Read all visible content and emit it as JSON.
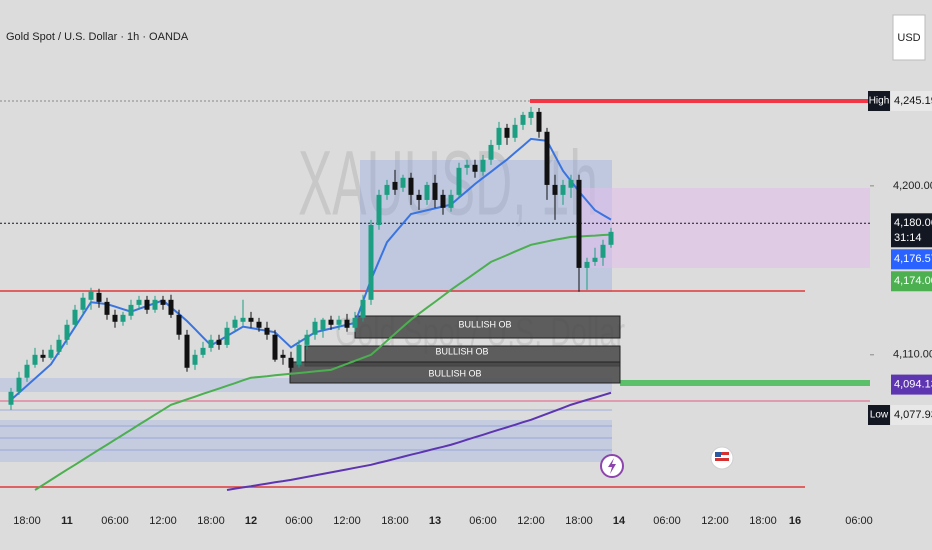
{
  "chart_data": {
    "type": "candlestick",
    "title": "Gold Spot / U.S. Dollar · 1h · OANDA",
    "watermark": "XAUUSD, 1h",
    "watermark_subtitle": "Gold Spot / U.S. Dollar",
    "currency": "USD",
    "categories": [
      null,
      null,
      "18:00",
      null,
      null,
      null,
      null,
      "11",
      null,
      null,
      null,
      null,
      null,
      "06:00",
      null,
      null,
      null,
      null,
      null,
      "12:00",
      null,
      null,
      null,
      null,
      null,
      "18:00",
      null,
      null,
      null,
      null,
      "12",
      null,
      null,
      null,
      null,
      null,
      "06:00",
      null,
      null,
      null,
      null,
      null,
      "12:00",
      null,
      null,
      null,
      null,
      null,
      "18:00",
      null,
      null,
      null,
      null,
      "13",
      null,
      null,
      null,
      null,
      null,
      "06:00",
      null,
      null,
      null,
      null,
      null,
      "12:00",
      null,
      null,
      null,
      null,
      null,
      "18:00",
      null,
      null,
      null,
      null,
      "14",
      null,
      null,
      null,
      null,
      null,
      "06:00",
      null,
      null,
      null,
      null,
      null,
      "12:00",
      null,
      null,
      null,
      null,
      null,
      "18:00",
      null,
      null,
      null,
      "16",
      null,
      null,
      null,
      null,
      null,
      null,
      null,
      "06:00"
    ],
    "open": [
      4083.4,
      4090.3,
      4097.8,
      4104.7,
      4110.0,
      4108.4,
      4111.6,
      4118.0,
      4126.0,
      4134.0,
      4139.3,
      4143.0,
      4138.2,
      4131.3,
      4127.6,
      4130.8,
      4136.6,
      4139.3,
      4134.0,
      4139.3,
      4139.3,
      4131.3,
      4120.7,
      4104.7,
      4110.0,
      4113.7,
      4118.0,
      4115.3,
      4124.4,
      4127.6,
      4129.7,
      4127.6,
      4124.4,
      4120.7,
      4110.0,
      4108.4,
      4104.7,
      4115.3,
      4120.7,
      4123.3,
      4128.7,
      4126.0,
      4128.7,
      4124.4,
      4129.7,
      4139.3,
      4179.2,
      4195.2,
      4202.1,
      4199.0,
      4204.3,
      4195.2,
      4192.5,
      4201.6,
      4195.2,
      4188.3,
      4195.2,
      4209.6,
      4211.2,
      4207.5,
      4213.9,
      4221.8,
      4230.9,
      4225.6,
      4232.5,
      4236.2,
      4239.4,
      4228.8,
      4200.5,
      4195.2,
      4199.0,
      4203.2,
      4156.3,
      4159.5,
      4161.7,
      4168.6,
      null,
      null,
      null,
      null,
      null,
      null,
      null,
      null,
      null,
      null,
      null,
      null,
      null,
      null,
      null,
      null,
      null,
      null,
      null,
      null,
      null,
      null,
      null,
      null,
      null,
      null,
      null,
      null,
      null,
      null,
      null
    ],
    "high": [
      4092.4,
      4101.0,
      4107.4,
      4113.7,
      4112.7,
      4115.3,
      4120.7,
      4128.7,
      4136.6,
      4143.0,
      4145.7,
      4145.2,
      4140.4,
      4134.0,
      4132.9,
      4139.3,
      4141.4,
      4141.4,
      4141.4,
      4141.4,
      4142.0,
      4134.0,
      4123.3,
      4112.7,
      4116.9,
      4120.7,
      4120.7,
      4127.6,
      4130.8,
      4139.3,
      4132.9,
      4129.7,
      4127.6,
      4123.3,
      4112.7,
      4111.6,
      4118.0,
      4123.3,
      4129.7,
      4129.7,
      4130.8,
      4130.8,
      4131.8,
      4132.9,
      4142.0,
      4181.9,
      4197.9,
      4203.2,
      4208.5,
      4205.9,
      4207.0,
      4197.9,
      4202.1,
      4205.9,
      4197.9,
      4197.9,
      4212.3,
      4213.9,
      4213.9,
      4216.5,
      4224.5,
      4234.1,
      4233.0,
      4236.2,
      4239.4,
      4242.1,
      4241.5,
      4230.9,
      4205.9,
      4203.2,
      4205.9,
      4205.9,
      4161.7,
      4167.0,
      4171.3,
      4177.6,
      null,
      null,
      null,
      null,
      null,
      null,
      null,
      null,
      null,
      null,
      null,
      null,
      null,
      null,
      null,
      null,
      null,
      null,
      null,
      null,
      null,
      null,
      null,
      null,
      null,
      null,
      null,
      null,
      null,
      null,
      null
    ],
    "low": [
      4080.7,
      4088.7,
      4095.6,
      4103.1,
      4106.3,
      4107.4,
      4110.0,
      4115.3,
      4124.4,
      4131.3,
      4134.0,
      4135.1,
      4128.7,
      4124.4,
      4125.5,
      4128.7,
      4134.0,
      4131.8,
      4132.4,
      4134.0,
      4129.7,
      4118.0,
      4101.0,
      4102.0,
      4108.4,
      4111.6,
      4112.7,
      4113.7,
      4122.3,
      4125.5,
      4124.4,
      4122.3,
      4118.0,
      4106.3,
      4104.7,
      4101.0,
      4103.1,
      4112.7,
      4118.0,
      4119.1,
      4123.3,
      4123.3,
      4122.3,
      4122.3,
      4127.6,
      4136.6,
      4176.6,
      4192.5,
      4195.2,
      4196.8,
      4189.9,
      4187.2,
      4189.9,
      4188.3,
      4184.6,
      4186.2,
      4193.6,
      4205.9,
      4204.3,
      4205.4,
      4211.2,
      4219.2,
      4221.8,
      4223.4,
      4229.8,
      4232.5,
      4225.6,
      4192.5,
      4181.9,
      4189.9,
      4193.6,
      4143.6,
      4144.6,
      4157.4,
      4157.4,
      4167.0,
      null,
      null,
      null,
      null,
      null,
      null,
      null,
      null,
      null,
      null,
      null,
      null,
      null,
      null,
      null,
      null,
      null,
      null,
      null,
      null,
      null,
      null,
      null,
      null,
      null,
      null,
      null,
      null,
      null,
      null,
      null
    ],
    "close": [
      4090.3,
      4097.8,
      4104.7,
      4110.0,
      4108.4,
      4112.7,
      4118.0,
      4126.0,
      4134.0,
      4140.4,
      4143.6,
      4138.2,
      4131.3,
      4127.6,
      4131.3,
      4136.6,
      4139.3,
      4134.0,
      4139.3,
      4136.6,
      4131.3,
      4120.7,
      4103.1,
      4110.0,
      4113.7,
      4118.0,
      4115.3,
      4124.4,
      4128.7,
      4129.7,
      4127.6,
      4124.4,
      4120.7,
      4107.4,
      4108.4,
      4103.1,
      4115.3,
      4120.7,
      4127.6,
      4128.7,
      4126.0,
      4128.7,
      4124.4,
      4129.7,
      4139.3,
      4179.2,
      4195.2,
      4200.5,
      4197.9,
      4204.3,
      4195.2,
      4192.5,
      4200.5,
      4192.5,
      4188.3,
      4195.2,
      4209.6,
      4211.2,
      4207.5,
      4213.9,
      4221.8,
      4230.9,
      4225.6,
      4232.5,
      4237.8,
      4239.4,
      4228.8,
      4200.5,
      4195.2,
      4200.5,
      4203.2,
      4156.3,
      4159.5,
      4161.7,
      4168.6,
      4175.5,
      null,
      null,
      null,
      null,
      null,
      null,
      null,
      null,
      null,
      null,
      null,
      null,
      null,
      null,
      null,
      null,
      null,
      null,
      null,
      null,
      null,
      null,
      null,
      null,
      null,
      null,
      null,
      null,
      null,
      null,
      null
    ],
    "up_color": "#1b9e82",
    "down_color": "#111111",
    "series": [
      {
        "color": "#3a74e0",
        "values": [
          4086,
          4089.8,
          4093.6,
          4097.4,
          4101.2,
          4105,
          4111.6,
          4118.2,
          4124.8,
          4131.4,
          4138,
          4137.5,
          4137,
          4135.7,
          4134.3,
          4133,
          4134.5,
          4136,
          4137.5,
          4139,
          4135.3,
          4131.7,
          4128,
          4123.7,
          4119.3,
          4115,
          4117.5,
          4120,
          4122.5,
          4125,
          4124.3,
          4123.5,
          4122.8,
          4122,
          4118,
          4114,
          4116.7,
          4119.3,
          4122,
          4123,
          4124,
          4125,
          4126,
          4127,
          4138.5,
          4150,
          4160,
          4170,
          4175,
          4180,
          4185,
          4186,
          4187,
          4188,
          4189,
          4190,
          4193.7,
          4197.3,
          4201,
          4204.3,
          4207.5,
          4210.8,
          4214,
          4217.7,
          4221.3,
          4225,
          4224.5,
          4224,
          4216,
          4208,
          4202.5,
          4197,
          4192,
          4187,
          4184.5,
          4182,
          null,
          null,
          null,
          null,
          null,
          null,
          null,
          null,
          null,
          null,
          null,
          null,
          null,
          null,
          null,
          null,
          null,
          null,
          null,
          null,
          null,
          null,
          null,
          null,
          null,
          null,
          null,
          null,
          null,
          null,
          null
        ]
      },
      {
        "color": "#4caf50",
        "values": [
          null,
          null,
          null,
          4038,
          4040.7,
          4043.4,
          4046.1,
          4048.8,
          4051.4,
          4054.1,
          4056.8,
          4059.5,
          4062.1,
          4064.8,
          4067.4,
          4070.1,
          4072.8,
          4075.4,
          4078.1,
          4080.7,
          4083.4,
          4084.8,
          4086.3,
          4087.7,
          4089.2,
          4090.6,
          4092,
          4093.5,
          4094.9,
          4096.4,
          4097.8,
          4098.2,
          4098.6,
          4099.1,
          4099.5,
          4099.9,
          4100.3,
          4100.7,
          4101.2,
          4101.6,
          4102,
          4103.6,
          4105.2,
          4106.8,
          4108.4,
          4110,
          4113.7,
          4117.5,
          4121.2,
          4125,
          4128.7,
          4131.9,
          4135.1,
          4138.2,
          4141.4,
          4144.6,
          4147.6,
          4150.5,
          4153.5,
          4156.5,
          4159.5,
          4161.3,
          4163.1,
          4165,
          4166.8,
          4168.6,
          4169.5,
          4170.4,
          4171.3,
          4172,
          4172.8,
          4173,
          4173.3,
          4173.5,
          4173.8,
          4174,
          null,
          null,
          null,
          null,
          null,
          null,
          null,
          null,
          null,
          null,
          null,
          null,
          null,
          null,
          null,
          null,
          null,
          null,
          null,
          null,
          null,
          null,
          null,
          null,
          null,
          null,
          null,
          null,
          null,
          null,
          null
        ]
      },
      {
        "color": "#5e35b1",
        "values": [
          null,
          null,
          null,
          null,
          null,
          null,
          null,
          null,
          null,
          null,
          null,
          null,
          null,
          null,
          null,
          null,
          null,
          null,
          null,
          null,
          null,
          null,
          null,
          null,
          null,
          null,
          null,
          4038,
          4038.7,
          4039.4,
          4040,
          4040.7,
          4041.4,
          4042.1,
          4042.7,
          4043.4,
          4044.2,
          4045,
          4045.8,
          4046.6,
          4047.4,
          4048.2,
          4049,
          4049.8,
          4050.6,
          4051.4,
          4052.5,
          4053.5,
          4054.6,
          4055.7,
          4056.8,
          4057.8,
          4058.9,
          4060,
          4061,
          4062.1,
          4063.4,
          4064.8,
          4066.1,
          4067.4,
          4068.8,
          4070.1,
          4071.4,
          4072.7,
          4074.1,
          4075.4,
          4077,
          4078.6,
          4080.2,
          4081.8,
          4083.4,
          4084.7,
          4086,
          4087.2,
          4088.5,
          4089.8,
          null,
          null,
          null,
          null,
          null,
          null,
          null,
          null,
          null,
          null,
          null,
          null,
          null,
          null,
          null,
          null,
          null,
          null,
          null,
          null,
          null,
          null,
          null,
          null,
          null,
          null,
          null,
          null,
          null,
          null,
          null
        ]
      }
    ],
    "ylim": [
      4030,
      4299
    ],
    "yticks": [
      {
        "value": 4200,
        "label": "4,200.000"
      },
      {
        "value": 4110,
        "label": "4,110.000"
      }
    ],
    "price_labels": [
      {
        "tag": "High",
        "value": 4245.195,
        "label": "4,245.195",
        "color": "#e8e8e8"
      },
      {
        "value": 4180.065,
        "label": "4,180.065",
        "color": "#131722",
        "countdown": "31:14"
      },
      {
        "value": 4176.57,
        "label": "4,176.570",
        "color": "#2962ff"
      },
      {
        "value": 4174.007,
        "label": "4,174.007",
        "color": "#4caf50"
      },
      {
        "value": 4094.134,
        "label": "4,094.134",
        "color": "#5e35b1"
      },
      {
        "tag": "Low",
        "value": 4077.935,
        "label": "4,077.935",
        "color": "#e8e8e8"
      }
    ],
    "annotations": [
      "BULLISH OB",
      "BULLISH OB",
      "BULLISH OB"
    ]
  }
}
